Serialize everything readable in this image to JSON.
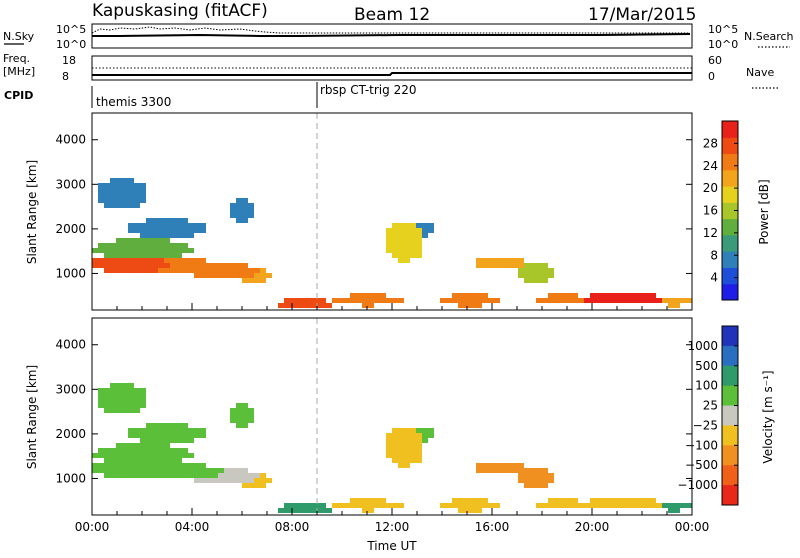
{
  "header": {
    "station": "Kapuskasing (fitACF)",
    "beam": "Beam 12",
    "date": "17/Mar/2015"
  },
  "strip_labels": {
    "nsky": "N.Sky",
    "nsearch": "N.Search",
    "freq_line1": "Freq.",
    "freq_line2": "[MHz]",
    "nave": "Nave",
    "cpid": "CPID",
    "nsky_top": "10^5",
    "nsky_bottom": "10^0",
    "nsearch_top": "10^5",
    "nsearch_bottom": "10^0",
    "freq_top": "18",
    "freq_bottom": "8",
    "nave_top": "60",
    "nave_bottom": "0"
  },
  "cpid_segments": [
    {
      "label": "themis 3300",
      "start_hour": 0
    },
    {
      "label": "rbsp CT-trig 220",
      "start_hour": 9
    }
  ],
  "chart_data": [
    {
      "type": "heatmap",
      "name": "power",
      "ylabel": "Slant Range [km]",
      "xlabel": "Time UT",
      "x_range_hours": [
        0,
        24
      ],
      "x_ticks": [
        "00:00",
        "04:00",
        "08:00",
        "12:00",
        "16:00",
        "20:00",
        "00:00"
      ],
      "ylim": [
        180,
        4600
      ],
      "y_ticks": [
        1000,
        2000,
        3000,
        4000
      ],
      "colorbar": {
        "label": "Power [dB]",
        "range": [
          0,
          32
        ],
        "ticks": [
          "4",
          "8",
          "12",
          "16",
          "20",
          "24",
          "28"
        ],
        "colors": [
          "#1e1ee6",
          "#1e4fd8",
          "#2f7fb8",
          "#3a9a7a",
          "#5fae3e",
          "#a8c62a",
          "#e6d21e",
          "#f2a41c",
          "#f07a14",
          "#ee4a14",
          "#e8221a"
        ]
      }
    },
    {
      "type": "heatmap",
      "name": "velocity",
      "ylabel": "Slant Range [km]",
      "xlabel": "Time UT",
      "x_range_hours": [
        0,
        24
      ],
      "x_ticks": [
        "00:00",
        "04:00",
        "08:00",
        "12:00",
        "16:00",
        "20:00",
        "00:00"
      ],
      "ylim": [
        180,
        4600
      ],
      "y_ticks": [
        1000,
        2000,
        3000,
        4000
      ],
      "colorbar": {
        "label": "Velocity [m s⁻¹]",
        "ticks": [
          "1000",
          "500",
          "100",
          "25",
          "−25",
          "−100",
          "−500",
          "−1000"
        ],
        "colors": [
          "#2233bb",
          "#2a6fbf",
          "#2f9a6a",
          "#5bbf3a",
          "#c8c8c0",
          "#f0c020",
          "#f09020",
          "#f06018",
          "#e82818"
        ]
      }
    }
  ]
}
